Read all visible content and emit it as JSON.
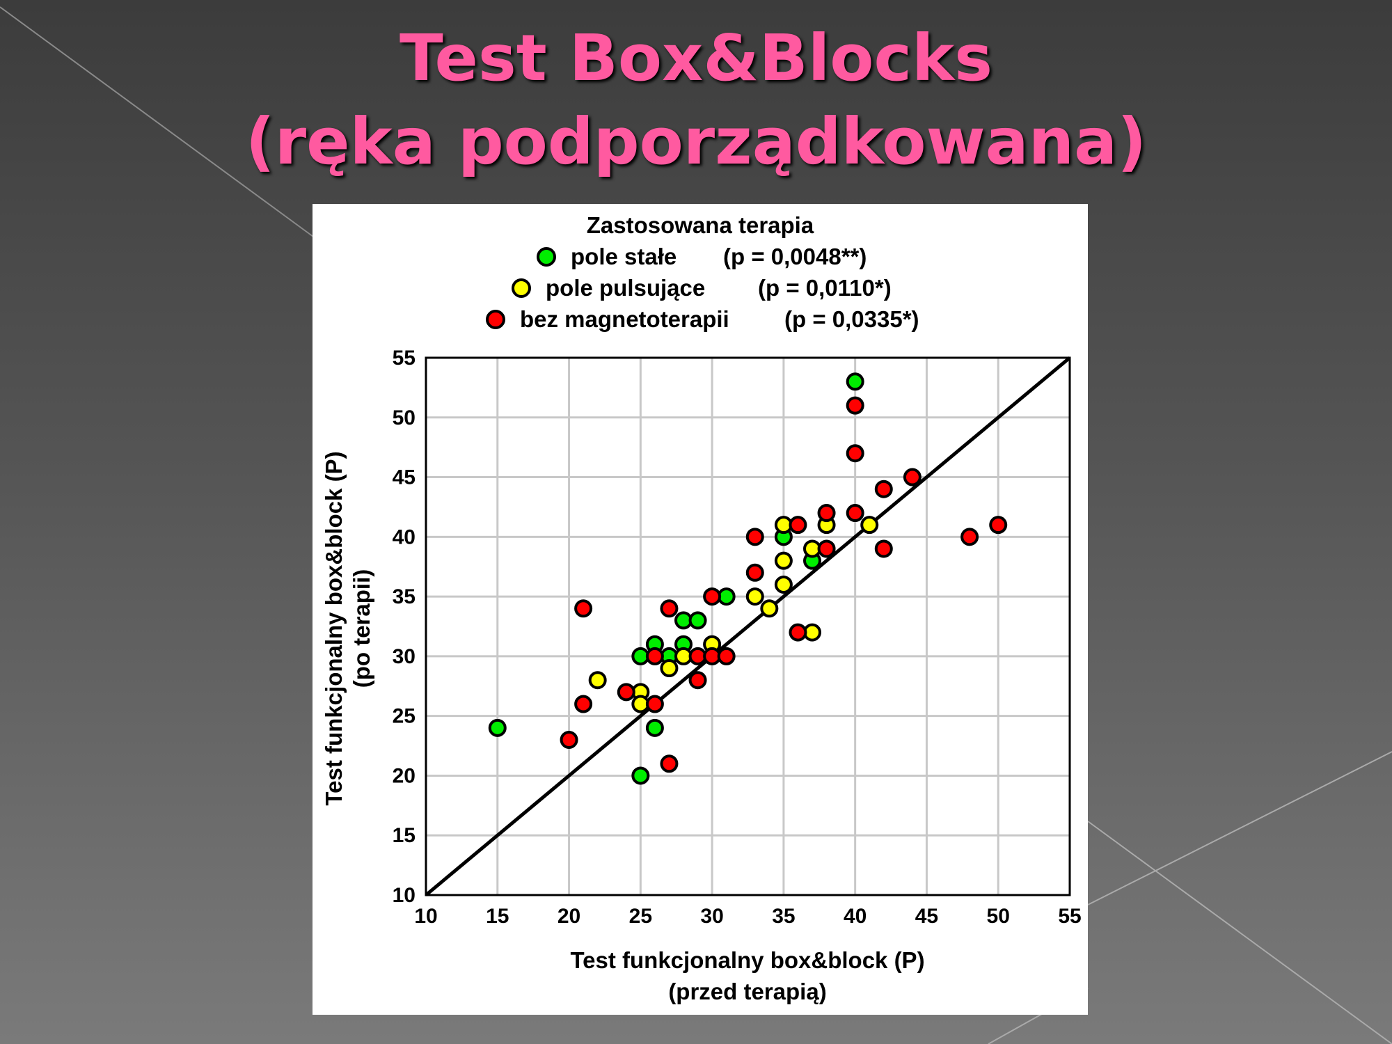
{
  "slide": {
    "title_line1": "Test Box&Blocks",
    "title_line2": "(ręka podporządkowana)"
  },
  "chart_data": {
    "type": "scatter",
    "legend_title": "Zastosowana terapia",
    "legend_placement": "top",
    "xlabel_line1": "Test funkcjonalny box&block (P)",
    "xlabel_line2": "(przed terapią)",
    "ylabel_line1": "Test funkcjonalny box&block (P)",
    "ylabel_line2": "(po terapii)",
    "xlim": [
      10,
      55
    ],
    "ylim": [
      10,
      55
    ],
    "xticks": [
      10,
      15,
      20,
      25,
      30,
      35,
      40,
      45,
      50,
      55
    ],
    "yticks": [
      10,
      15,
      20,
      25,
      30,
      35,
      40,
      45,
      50,
      55
    ],
    "grid": true,
    "reference_line": {
      "x": [
        10,
        55
      ],
      "y": [
        10,
        55
      ]
    },
    "series": [
      {
        "name": "pole stałe",
        "pvalue": "(p = 0,0048**)",
        "color": "#00ee00",
        "points": [
          [
            15,
            24
          ],
          [
            25,
            20
          ],
          [
            26,
            24
          ],
          [
            25,
            30
          ],
          [
            26,
            31
          ],
          [
            27,
            30
          ],
          [
            28,
            31
          ],
          [
            28,
            33
          ],
          [
            29,
            33
          ],
          [
            31,
            35
          ],
          [
            35,
            40
          ],
          [
            37,
            38
          ],
          [
            40,
            53
          ]
        ]
      },
      {
        "name": "pole pulsujące",
        "pvalue": "(p = 0,0110*)",
        "color": "#ffff00",
        "points": [
          [
            22,
            28
          ],
          [
            25,
            27
          ],
          [
            25,
            26
          ],
          [
            27,
            29
          ],
          [
            28,
            30
          ],
          [
            30,
            31
          ],
          [
            33,
            35
          ],
          [
            34,
            34
          ],
          [
            35,
            36
          ],
          [
            35,
            38
          ],
          [
            35,
            41
          ],
          [
            37,
            39
          ],
          [
            38,
            41
          ],
          [
            41,
            41
          ],
          [
            37,
            32
          ]
        ]
      },
      {
        "name": "bez magnetoterapii",
        "pvalue": "(p = 0,0335*)",
        "color": "#ff0000",
        "points": [
          [
            20,
            23
          ],
          [
            21,
            26
          ],
          [
            21,
            34
          ],
          [
            24,
            27
          ],
          [
            26,
            26
          ],
          [
            26,
            30
          ],
          [
            27,
            34
          ],
          [
            27,
            21
          ],
          [
            29,
            30
          ],
          [
            29,
            28
          ],
          [
            30,
            30
          ],
          [
            31,
            30
          ],
          [
            30,
            35
          ],
          [
            33,
            37
          ],
          [
            33,
            40
          ],
          [
            36,
            41
          ],
          [
            36,
            32
          ],
          [
            38,
            42
          ],
          [
            38,
            39
          ],
          [
            40,
            42
          ],
          [
            40,
            47
          ],
          [
            40,
            51
          ],
          [
            42,
            44
          ],
          [
            42,
            39
          ],
          [
            44,
            45
          ],
          [
            48,
            40
          ],
          [
            50,
            41
          ]
        ]
      }
    ]
  }
}
